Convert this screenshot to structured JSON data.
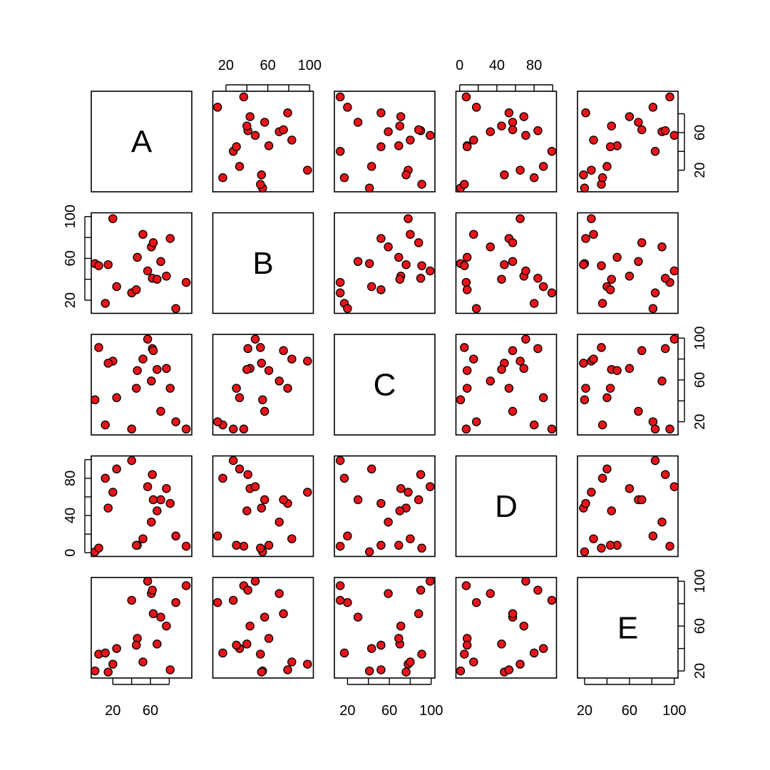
{
  "colors": {
    "point_fill": "#e8141a",
    "point_stroke": "#000000",
    "frame": "#000000"
  },
  "chart_data": {
    "type": "scatter",
    "subtype": "scatterplot-matrix",
    "variables": [
      "A",
      "B",
      "C",
      "D",
      "E"
    ],
    "ranges": {
      "A": [
        1,
        100
      ],
      "B": [
        11,
        100
      ],
      "C": [
        11,
        100
      ],
      "D": [
        0,
        100
      ],
      "E": [
        17,
        100
      ]
    },
    "axis_ticks": {
      "A": [
        20,
        60
      ],
      "B": [
        20,
        60,
        100
      ],
      "C": [
        20,
        60,
        100
      ],
      "D": [
        0,
        40,
        80
      ],
      "E": [
        20,
        60,
        100
      ]
    },
    "tick_marks": {
      "A": [
        20,
        40,
        60,
        80
      ],
      "B": [
        20,
        40,
        60,
        80,
        100
      ],
      "C": [
        20,
        40,
        60,
        80,
        100
      ],
      "D": [
        0,
        20,
        40,
        60,
        80,
        100
      ],
      "E": [
        20,
        40,
        60,
        80,
        100
      ]
    },
    "data": {
      "A": [
        1,
        5,
        98,
        77,
        20,
        61,
        62,
        15,
        24,
        71,
        12,
        52,
        87,
        40,
        81,
        63,
        67,
        57,
        46,
        45
      ],
      "B": [
        55,
        53,
        37,
        43,
        98,
        71,
        41,
        54,
        33,
        57,
        17,
        83,
        12,
        27,
        79,
        75,
        40,
        48,
        61,
        30
      ],
      "C": [
        41,
        91,
        13,
        71,
        78,
        59,
        90,
        76,
        43,
        30,
        17,
        80,
        20,
        13,
        52,
        88,
        70,
        99,
        69,
        52
      ],
      "D": [
        1,
        5,
        7,
        69,
        65,
        33,
        84,
        48,
        90,
        57,
        80,
        15,
        18,
        99,
        53,
        57,
        45,
        71,
        8,
        8
      ],
      "E": [
        20,
        35,
        96,
        60,
        26,
        89,
        92,
        19,
        40,
        68,
        36,
        28,
        81,
        83,
        21,
        71,
        44,
        100,
        49,
        43
      ]
    }
  }
}
